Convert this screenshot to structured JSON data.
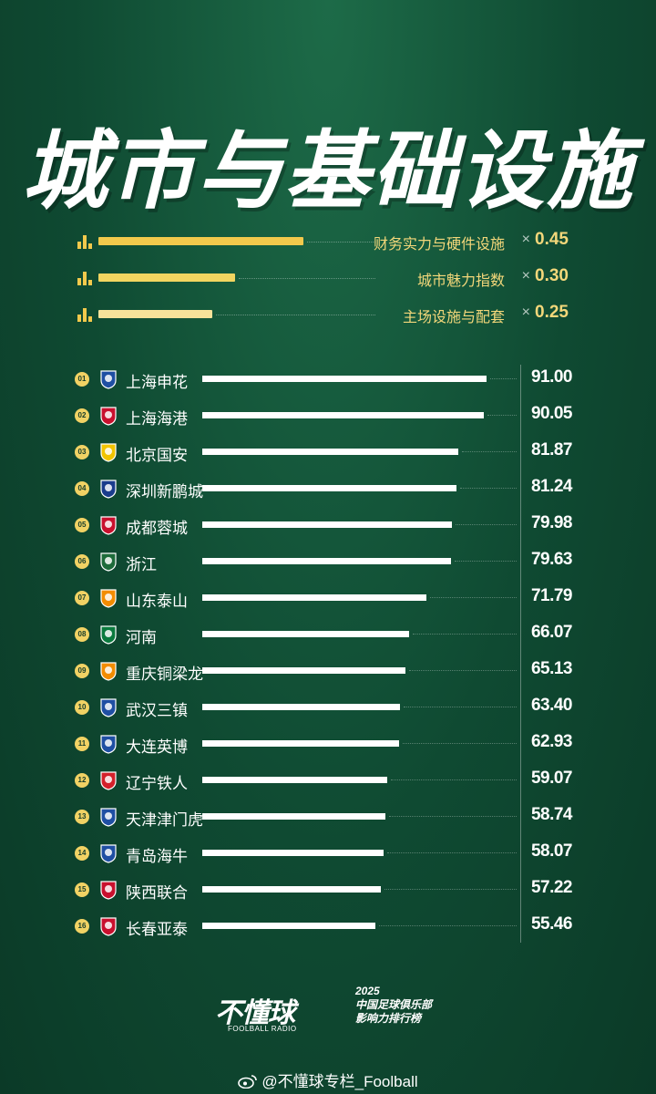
{
  "title": "城市与基础设施",
  "metrics": [
    {
      "label": "财务实力与硬件设施",
      "times": "×",
      "weight": "0.45",
      "value": 0.45,
      "color": "#f2c94c"
    },
    {
      "label": "城市魅力指数",
      "times": "×",
      "weight": "0.30",
      "value": 0.3,
      "color": "#f2d560"
    },
    {
      "label": "主场设施与配套",
      "times": "×",
      "weight": "0.25",
      "value": 0.25,
      "color": "#f7e29a"
    }
  ],
  "chart_data": {
    "type": "bar",
    "orientation": "horizontal",
    "categories": [
      "上海申花",
      "上海海港",
      "北京国安",
      "深圳新鹏城",
      "成都蓉城",
      "浙江",
      "山东泰山",
      "河南",
      "重庆铜梁龙",
      "武汉三镇",
      "大连英博",
      "辽宁铁人",
      "天津津门虎",
      "青岛海牛",
      "陕西联合",
      "长春亚泰"
    ],
    "ranks": [
      "01",
      "02",
      "03",
      "04",
      "05",
      "06",
      "07",
      "08",
      "09",
      "10",
      "11",
      "12",
      "13",
      "14",
      "15",
      "16"
    ],
    "values": [
      91.0,
      90.05,
      81.87,
      81.24,
      79.98,
      79.63,
      71.79,
      66.07,
      65.13,
      63.4,
      62.93,
      59.07,
      58.74,
      58.07,
      57.22,
      55.46
    ],
    "value_labels": [
      "91.00",
      "90.05",
      "81.87",
      "81.24",
      "79.98",
      "79.63",
      "71.79",
      "66.07",
      "65.13",
      "63.40",
      "62.93",
      "59.07",
      "58.74",
      "58.07",
      "57.22",
      "55.46"
    ],
    "xlim": [
      0,
      100
    ],
    "bar_color": "#ffffff"
  },
  "team_colors": [
    "#1f4fa3",
    "#c8102e",
    "#f1c400",
    "#1a3c8c",
    "#c8102e",
    "#1d6b3a",
    "#f28c00",
    "#0b7a3e",
    "#f28c00",
    "#1f4fa3",
    "#1f4fa3",
    "#d4202b",
    "#1f4fa3",
    "#1f4fa3",
    "#c8102e",
    "#c8102e"
  ],
  "footer": {
    "logo_text": "不懂球",
    "logo_sub": "FOOLBALL RADIO",
    "tag_year": "2025",
    "tag_line1": "中国足球俱乐部",
    "tag_line2": "影响力排行榜",
    "credit": "@不懂球专栏_Foolball"
  }
}
